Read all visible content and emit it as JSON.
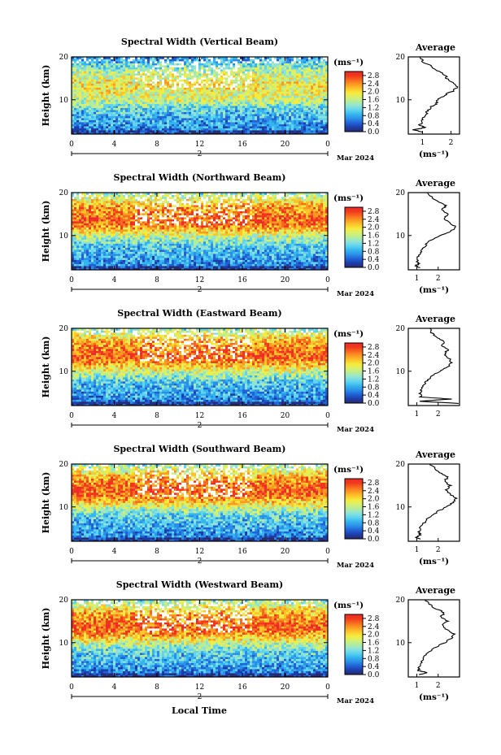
{
  "figure": {
    "xlabel": "Local Time",
    "date_label": "Mar 2024",
    "day_label": "2",
    "cbar_unit": "(ms⁻¹)",
    "colors": [
      "#2a2a6e",
      "#1e3ca8",
      "#2161d6",
      "#2b8fe8",
      "#35b5ef",
      "#5fd4ef",
      "#8ee3d8",
      "#b4ec9c",
      "#d7f06e",
      "#f5ec3d",
      "#fcc52a",
      "#fb9a22",
      "#f86a1f",
      "#f0391c",
      "#ee2a2a"
    ]
  },
  "chart_data": [
    {
      "type": "heatmap",
      "title": "Spectral Width (Vertical Beam)",
      "ylabel": "Height (km)",
      "x_ticks": [
        "0",
        "4",
        "8",
        "12",
        "16",
        "20",
        "0"
      ],
      "xlim": [
        0,
        24
      ],
      "y_ticks": [
        "20",
        "10"
      ],
      "ylim": [
        2,
        20
      ],
      "colorbar": {
        "label": "(ms⁻¹)",
        "ticks": [
          "2.8",
          "2.4",
          "2.0",
          "1.6",
          "1.2",
          "0.8",
          "0.4",
          "0.0"
        ],
        "range": [
          0,
          3.0
        ]
      },
      "profile": {
        "title": "Average",
        "x_ticks": [
          "1",
          "2"
        ],
        "xlim": [
          0.5,
          2.3
        ],
        "y_ticks": [
          "20",
          "10"
        ],
        "ylim": [
          2,
          20
        ],
        "xlabel": "(ms⁻¹)",
        "points": [
          [
            1.0,
            2.5
          ],
          [
            0.7,
            3
          ],
          [
            1.1,
            3.5
          ],
          [
            0.9,
            4
          ],
          [
            1.0,
            5
          ],
          [
            1.05,
            6
          ],
          [
            1.15,
            7
          ],
          [
            1.25,
            8
          ],
          [
            1.45,
            9
          ],
          [
            1.55,
            10
          ],
          [
            1.75,
            11
          ],
          [
            2.05,
            12
          ],
          [
            2.2,
            13
          ],
          [
            2.05,
            14
          ],
          [
            1.85,
            15
          ],
          [
            1.75,
            16
          ],
          [
            1.5,
            17
          ],
          [
            1.25,
            18
          ],
          [
            1.0,
            19
          ],
          [
            0.9,
            20
          ]
        ]
      }
    },
    {
      "type": "heatmap",
      "title": "Spectral Width (Northward Beam)",
      "ylabel": "Height (km)",
      "x_ticks": [
        "0",
        "4",
        "8",
        "12",
        "16",
        "20",
        "0"
      ],
      "xlim": [
        0,
        24
      ],
      "y_ticks": [
        "20",
        "10"
      ],
      "ylim": [
        2,
        20
      ],
      "colorbar": {
        "label": "(ms⁻¹)",
        "ticks": [
          "2.8",
          "2.4",
          "2.0",
          "1.6",
          "1.2",
          "0.8",
          "0.4",
          "0.0"
        ],
        "range": [
          0,
          3.0
        ]
      },
      "profile": {
        "title": "Average",
        "x_ticks": [
          "1",
          "2"
        ],
        "xlim": [
          0.6,
          3.0
        ],
        "y_ticks": [
          "20",
          "10"
        ],
        "ylim": [
          2,
          20
        ],
        "xlabel": "(ms⁻¹)",
        "points": [
          [
            1.1,
            2.5
          ],
          [
            0.95,
            3
          ],
          [
            1.15,
            3.5
          ],
          [
            1.0,
            4
          ],
          [
            1.05,
            5
          ],
          [
            1.15,
            6
          ],
          [
            1.3,
            7
          ],
          [
            1.45,
            8
          ],
          [
            1.7,
            9
          ],
          [
            2.1,
            10
          ],
          [
            2.6,
            11
          ],
          [
            2.85,
            12
          ],
          [
            2.5,
            13
          ],
          [
            2.3,
            14
          ],
          [
            2.45,
            15
          ],
          [
            2.2,
            16
          ],
          [
            2.35,
            17
          ],
          [
            1.95,
            18
          ],
          [
            1.7,
            19
          ],
          [
            1.5,
            20
          ]
        ]
      }
    },
    {
      "type": "heatmap",
      "title": "Spectral Width (Eastward Beam)",
      "ylabel": "Height (km)",
      "x_ticks": [
        "0",
        "4",
        "8",
        "12",
        "16",
        "20",
        "0"
      ],
      "xlim": [
        0,
        24
      ],
      "y_ticks": [
        "20",
        "10"
      ],
      "ylim": [
        2,
        20
      ],
      "colorbar": {
        "label": "(ms⁻¹)",
        "ticks": [
          "2.8",
          "2.4",
          "2.0",
          "1.6",
          "1.2",
          "0.8",
          "0.4",
          "0.0"
        ],
        "range": [
          0,
          3.0
        ]
      },
      "profile": {
        "title": "Average",
        "x_ticks": [
          "1",
          "2"
        ],
        "xlim": [
          0.6,
          3.0
        ],
        "y_ticks": [
          "20",
          "10"
        ],
        "ylim": [
          2,
          20
        ],
        "xlabel": "",
        "points": [
          [
            2.9,
            2.5
          ],
          [
            1.1,
            3
          ],
          [
            2.6,
            3.5
          ],
          [
            1.2,
            4
          ],
          [
            1.15,
            5
          ],
          [
            1.25,
            6
          ],
          [
            1.35,
            7
          ],
          [
            1.5,
            8
          ],
          [
            1.75,
            9
          ],
          [
            2.05,
            10
          ],
          [
            2.45,
            11
          ],
          [
            2.65,
            12
          ],
          [
            2.5,
            13
          ],
          [
            2.3,
            14
          ],
          [
            2.45,
            15
          ],
          [
            2.15,
            16
          ],
          [
            2.3,
            17
          ],
          [
            1.9,
            18
          ],
          [
            1.7,
            19
          ],
          [
            1.6,
            20
          ]
        ]
      }
    },
    {
      "type": "heatmap",
      "title": "Spectral Width (Southward Beam)",
      "ylabel": "Height (km)",
      "x_ticks": [
        "0",
        "4",
        "8",
        "12",
        "16",
        "20",
        "0"
      ],
      "xlim": [
        0,
        24
      ],
      "y_ticks": [
        "20",
        "10"
      ],
      "ylim": [
        2,
        20
      ],
      "colorbar": {
        "label": "(ms⁻¹)",
        "ticks": [
          "2.8",
          "2.4",
          "2.0",
          "1.6",
          "1.2",
          "0.8",
          "0.4",
          "0.0"
        ],
        "range": [
          0,
          3.0
        ]
      },
      "profile": {
        "title": "Average",
        "x_ticks": [
          "1",
          "2"
        ],
        "xlim": [
          0.6,
          3.0
        ],
        "y_ticks": [
          "20",
          "10"
        ],
        "ylim": [
          2,
          20
        ],
        "xlabel": "(ms⁻¹)",
        "points": [
          [
            1.15,
            2.5
          ],
          [
            0.95,
            3
          ],
          [
            1.2,
            3.5
          ],
          [
            1.1,
            4
          ],
          [
            1.15,
            5
          ],
          [
            1.3,
            6
          ],
          [
            1.45,
            7
          ],
          [
            1.7,
            8
          ],
          [
            2.0,
            9
          ],
          [
            2.4,
            10
          ],
          [
            2.7,
            11
          ],
          [
            2.85,
            12
          ],
          [
            2.55,
            13
          ],
          [
            2.4,
            14
          ],
          [
            2.55,
            15
          ],
          [
            2.3,
            16
          ],
          [
            2.45,
            17
          ],
          [
            2.1,
            18
          ],
          [
            1.85,
            19
          ],
          [
            1.6,
            20
          ]
        ]
      }
    },
    {
      "type": "heatmap",
      "title": "Spectral Width (Westward Beam)",
      "ylabel": "Height (km)",
      "x_ticks": [
        "0",
        "4",
        "8",
        "12",
        "16",
        "20",
        "0"
      ],
      "xlim": [
        0,
        24
      ],
      "y_ticks": [
        "20",
        "10"
      ],
      "ylim": [
        2,
        20
      ],
      "colorbar": {
        "label": "(ms⁻¹)",
        "ticks": [
          "2.8",
          "2.4",
          "2.0",
          "1.6",
          "1.2",
          "0.8",
          "0.4",
          "0.0"
        ],
        "range": [
          0,
          3.0
        ]
      },
      "profile": {
        "title": "Average",
        "x_ticks": [
          "1",
          "2"
        ],
        "xlim": [
          0.6,
          3.0
        ],
        "y_ticks": [
          "20",
          "10"
        ],
        "ylim": [
          2,
          20
        ],
        "xlabel": "(ms⁻¹)",
        "points": [
          [
            1.1,
            2.5
          ],
          [
            1.5,
            3
          ],
          [
            1.05,
            3.5
          ],
          [
            1.1,
            4
          ],
          [
            1.15,
            5
          ],
          [
            1.25,
            6
          ],
          [
            1.4,
            7
          ],
          [
            1.6,
            8
          ],
          [
            1.9,
            9
          ],
          [
            2.3,
            10
          ],
          [
            2.6,
            11
          ],
          [
            2.75,
            12
          ],
          [
            2.4,
            13
          ],
          [
            2.2,
            14
          ],
          [
            2.45,
            15
          ],
          [
            2.1,
            16
          ],
          [
            2.3,
            17
          ],
          [
            1.85,
            18
          ],
          [
            1.6,
            19
          ],
          [
            1.4,
            20
          ]
        ]
      }
    }
  ]
}
